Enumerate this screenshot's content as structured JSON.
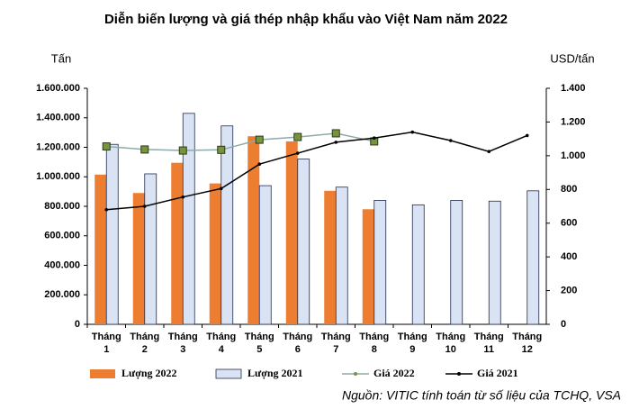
{
  "chart_data": {
    "type": "bar",
    "title": "Diễn biến lượng và giá thép nhập khẩu vào Việt Nam năm 2022",
    "y_label": "Tấn",
    "y2_label": "USD/tấn",
    "source": "Nguồn: VITIC tính toán từ số liệu của TCHQ, VSA",
    "categories": [
      "Tháng 1",
      "Tháng 2",
      "Tháng 3",
      "Tháng 4",
      "Tháng 5",
      "Tháng 6",
      "Tháng 7",
      "Tháng 8",
      "Tháng 9",
      "Tháng 10",
      "Tháng 11",
      "Tháng 12"
    ],
    "series": [
      {
        "name": "Lượng 2022",
        "type": "bar",
        "color": "#ed7d31",
        "values": [
          1015000,
          890000,
          1095000,
          955000,
          1275000,
          1240000,
          905000,
          780000,
          null,
          null,
          null,
          null
        ]
      },
      {
        "name": "Lượng 2021",
        "type": "bar",
        "color": "#dae3f3",
        "values": [
          1220000,
          1020000,
          1430000,
          1345000,
          940000,
          1120000,
          930000,
          840000,
          810000,
          840000,
          835000,
          905000
        ]
      },
      {
        "name": "Giá 2022",
        "type": "line",
        "axis": "y2",
        "color": "#77933c",
        "line_color": "#8ea9a9",
        "values": [
          1055,
          1037,
          1031,
          1035,
          1095,
          1111,
          1133,
          1085,
          null,
          null,
          null,
          null
        ]
      },
      {
        "name": "Giá 2021",
        "type": "line",
        "axis": "y2",
        "color": "#000000",
        "line_color": "#000000",
        "values": [
          680,
          700,
          755,
          805,
          950,
          1015,
          1080,
          1105,
          1140,
          1090,
          1025,
          1120
        ]
      }
    ],
    "ylim": [
      0,
      1600000
    ],
    "yticks": [
      0,
      {
        "value": 200000,
        "label": "200.000"
      },
      {
        "value": 400000,
        "label": "400.000"
      },
      {
        "value": 600000,
        "label": "600.000"
      },
      {
        "value": 800000,
        "label": "800.000"
      },
      {
        "value": 1000000,
        "label": "1.000.000"
      },
      {
        "value": 1200000,
        "label": "1.200.000"
      },
      {
        "value": 1400000,
        "label": "1.400.000"
      },
      {
        "value": 1600000,
        "label": "1.600.000"
      }
    ],
    "y2lim": [
      0,
      1400
    ],
    "y2ticks": [
      0,
      200,
      400,
      600,
      800,
      {
        "value": 1000,
        "label": "1.000"
      },
      {
        "value": 1200,
        "label": "1.200"
      },
      {
        "value": 1400,
        "label": "1.400"
      }
    ],
    "legend": "bottom"
  }
}
